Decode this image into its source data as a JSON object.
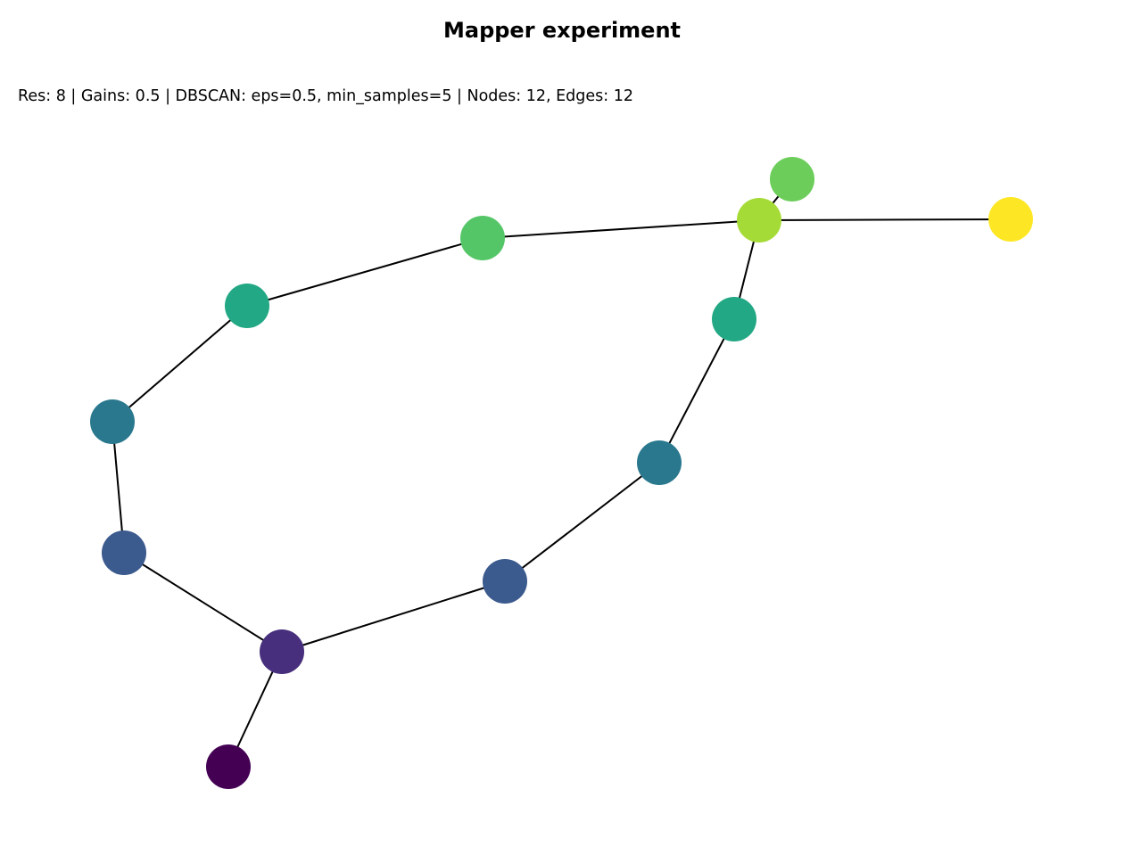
{
  "title": "Mapper experiment",
  "subtitle": "Res: 8 | Gains: 0.5 | DBSCAN: eps=0.5, min_samples=5 | Nodes: 12, Edges: 12",
  "graph": {
    "edge_color": "#000000",
    "nodes": [
      {
        "id": "n0",
        "color": "#440154"
      },
      {
        "id": "n1",
        "color": "#472f7d"
      },
      {
        "id": "n2",
        "color": "#3b5a8d"
      },
      {
        "id": "n3",
        "color": "#3b5a8d"
      },
      {
        "id": "n4",
        "color": "#2a788e"
      },
      {
        "id": "n5",
        "color": "#2a788e"
      },
      {
        "id": "n6",
        "color": "#22a884"
      },
      {
        "id": "n7",
        "color": "#22a884"
      },
      {
        "id": "n8",
        "color": "#55c667"
      },
      {
        "id": "n9",
        "color": "#a5db36"
      },
      {
        "id": "n10",
        "color": "#6ccd5a"
      },
      {
        "id": "n11",
        "color": "#fde725"
      }
    ],
    "edges": [
      [
        "n0",
        "n1"
      ],
      [
        "n1",
        "n2"
      ],
      [
        "n2",
        "n4"
      ],
      [
        "n4",
        "n6"
      ],
      [
        "n6",
        "n8"
      ],
      [
        "n8",
        "n9"
      ],
      [
        "n9",
        "n10"
      ],
      [
        "n9",
        "n11"
      ],
      [
        "n9",
        "n7"
      ],
      [
        "n7",
        "n5"
      ],
      [
        "n5",
        "n3"
      ],
      [
        "n3",
        "n1"
      ]
    ]
  }
}
